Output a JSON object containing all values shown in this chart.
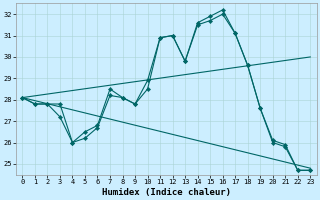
{
  "title": "",
  "xlabel": "Humidex (Indice chaleur)",
  "bg_color": "#cceeff",
  "line_color": "#006666",
  "xlim": [
    -0.5,
    23.5
  ],
  "ylim": [
    24.5,
    32.5
  ],
  "xticks": [
    0,
    1,
    2,
    3,
    4,
    5,
    6,
    7,
    8,
    9,
    10,
    11,
    12,
    13,
    14,
    15,
    16,
    17,
    18,
    19,
    20,
    21,
    22,
    23
  ],
  "yticks": [
    25,
    26,
    27,
    28,
    29,
    30,
    31,
    32
  ],
  "line1_x": [
    0,
    1,
    2,
    3,
    4,
    5,
    6,
    7,
    8,
    9,
    10,
    11,
    12,
    13,
    14,
    15,
    16,
    17,
    18,
    19,
    20,
    21,
    22,
    23
  ],
  "line1_y": [
    28.1,
    27.8,
    27.8,
    27.8,
    26.0,
    26.5,
    26.8,
    28.5,
    28.1,
    27.8,
    28.9,
    30.9,
    31.0,
    29.8,
    31.6,
    31.9,
    32.2,
    31.1,
    29.6,
    27.6,
    26.1,
    25.9,
    24.7,
    24.7
  ],
  "line2_x": [
    0,
    1,
    2,
    3,
    4,
    5,
    6,
    7,
    8,
    9,
    10,
    11,
    12,
    13,
    14,
    15,
    16,
    17,
    18,
    19,
    20,
    21,
    22,
    23
  ],
  "line2_y": [
    28.1,
    27.8,
    27.8,
    27.2,
    26.0,
    26.2,
    26.7,
    28.2,
    28.1,
    27.8,
    28.5,
    30.9,
    31.0,
    29.8,
    31.5,
    31.7,
    32.0,
    31.1,
    29.6,
    27.6,
    26.0,
    25.8,
    24.7,
    24.7
  ],
  "trend1_x": [
    0,
    23
  ],
  "trend1_y": [
    28.1,
    30.0
  ],
  "trend2_x": [
    0,
    23
  ],
  "trend2_y": [
    28.1,
    24.8
  ],
  "figsize": [
    3.2,
    2.0
  ],
  "dpi": 100
}
